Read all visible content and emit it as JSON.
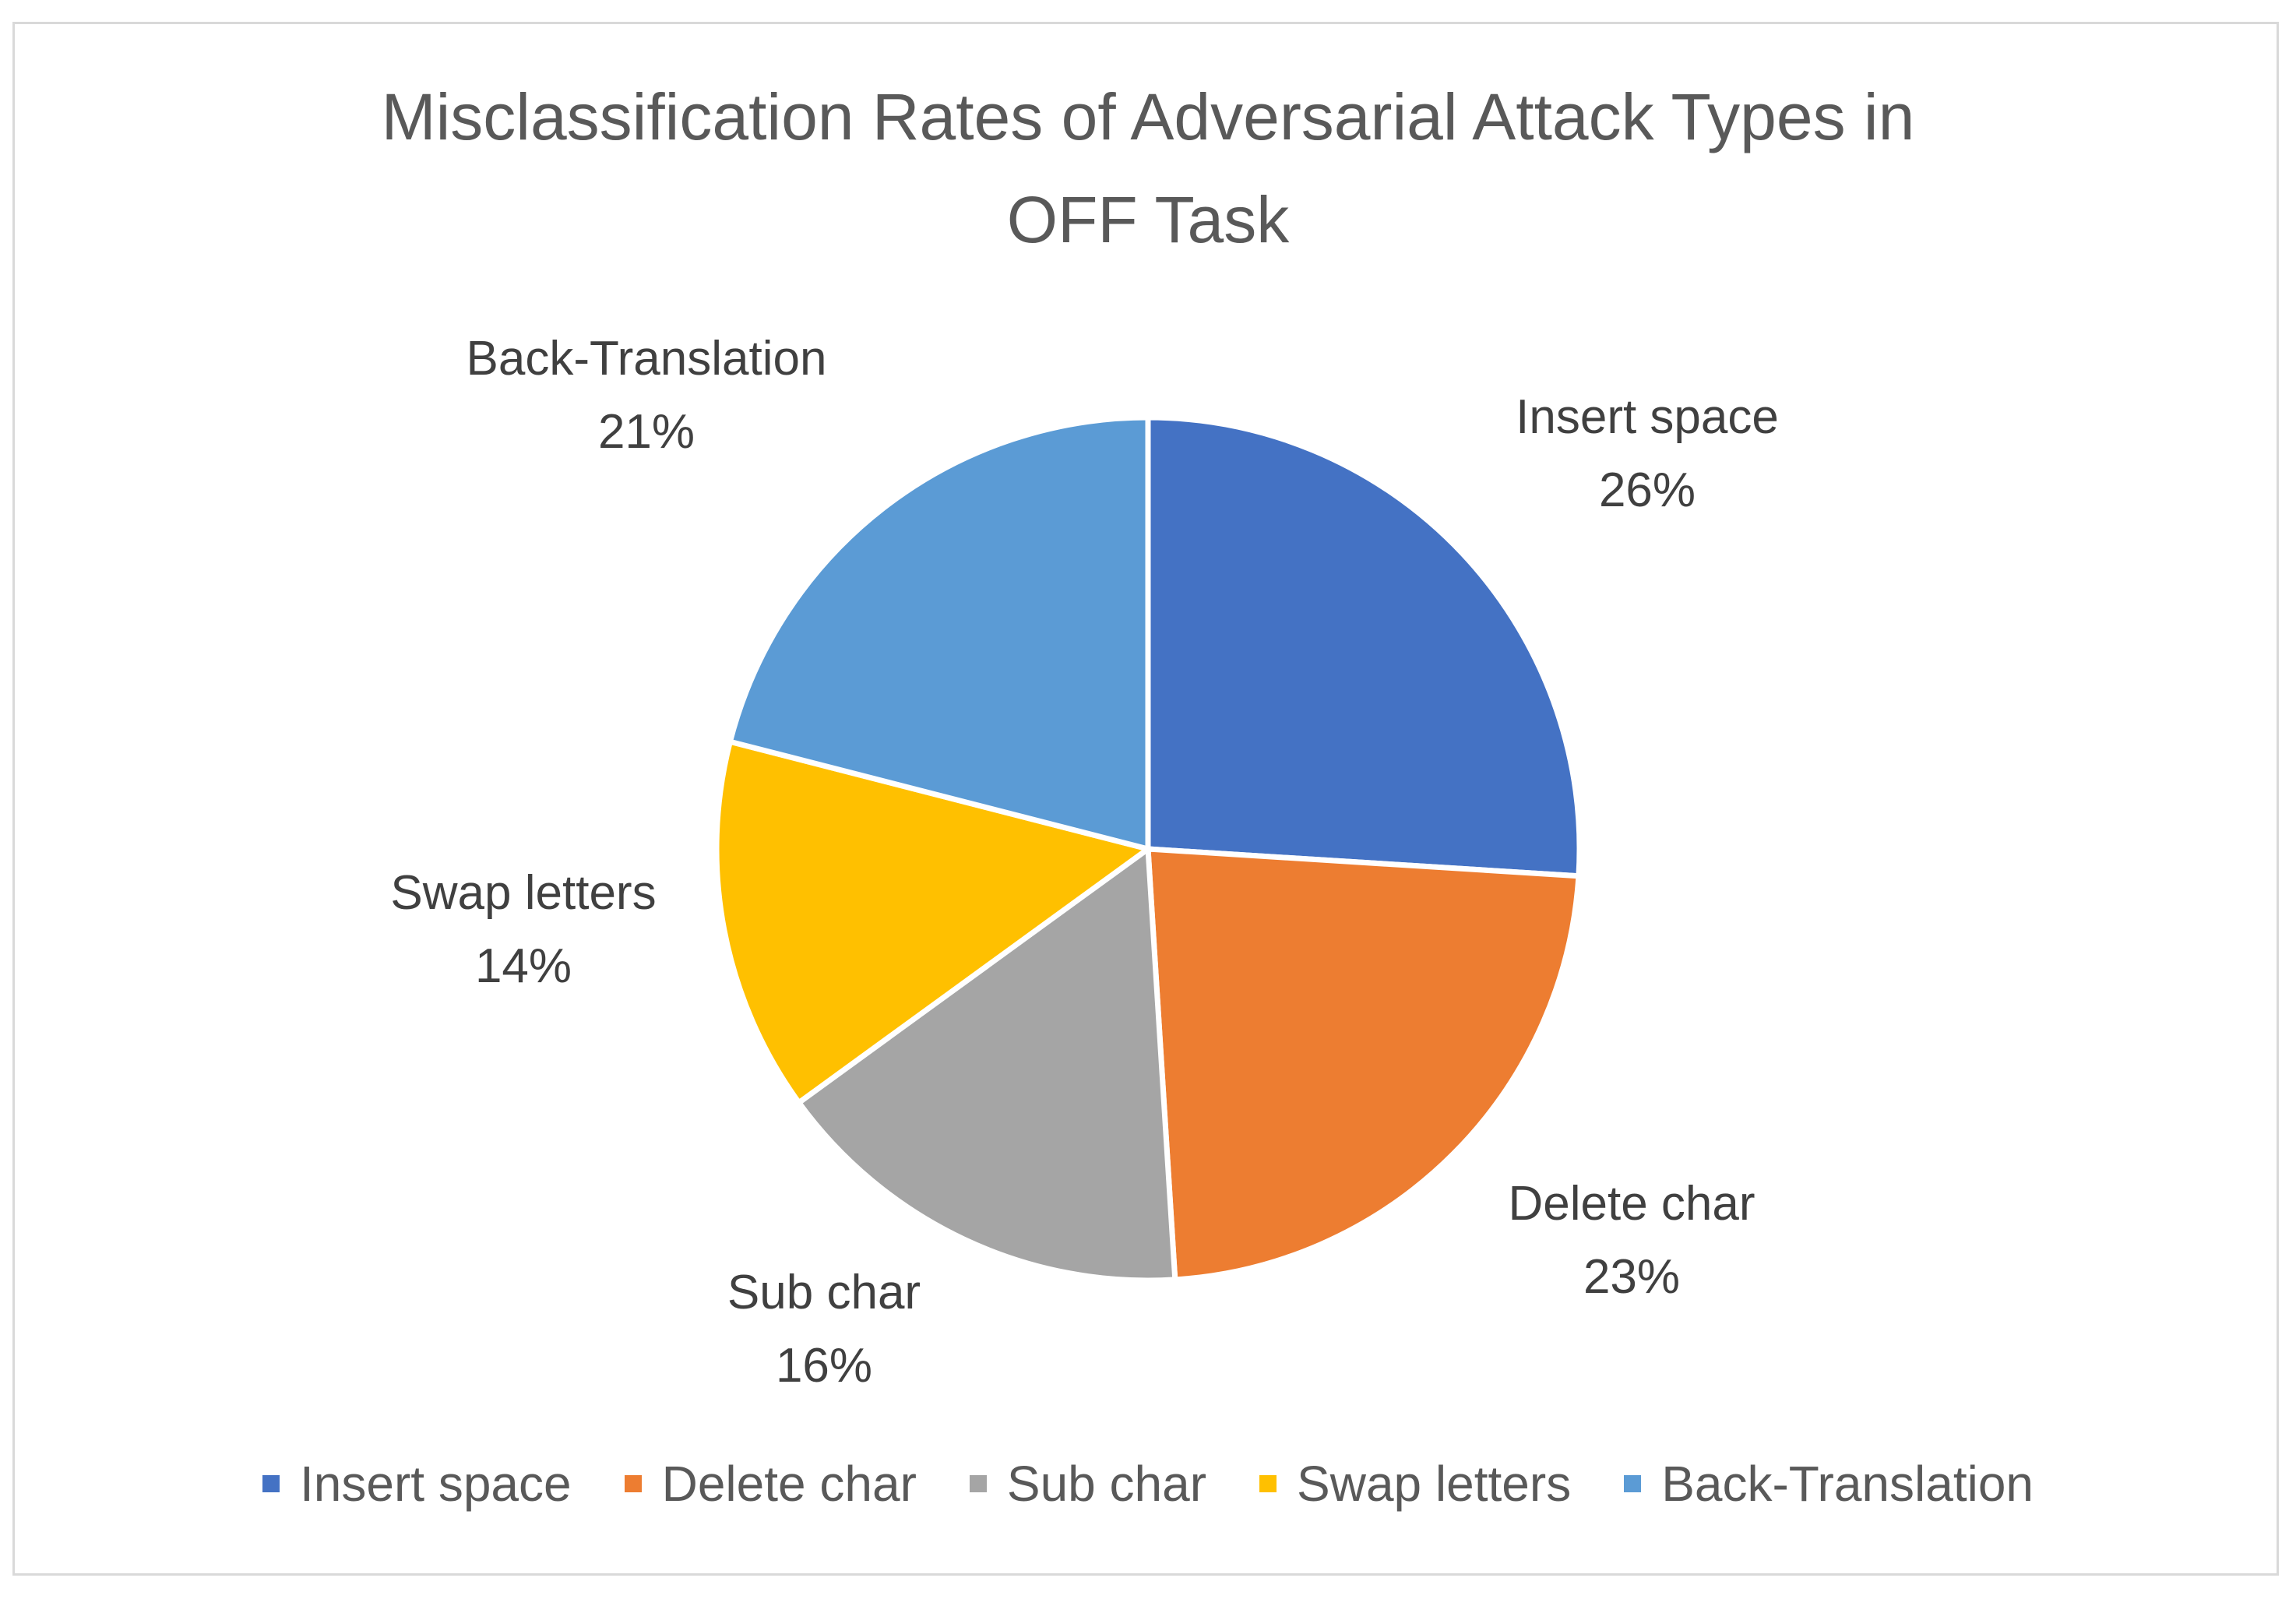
{
  "chart_data": {
    "type": "pie",
    "title": "Misclassification Rates of Adversarial Attack Types in OFF Task",
    "title_lines": [
      "Misclassification Rates of Adversarial Attack Types in",
      "OFF Task"
    ],
    "categories": [
      "Insert space",
      "Delete char",
      "Sub char",
      "Swap letters",
      "Back-Translation"
    ],
    "values": [
      26,
      23,
      16,
      14,
      21
    ],
    "value_labels": [
      "26%",
      "23%",
      "16%",
      "14%",
      "21%"
    ],
    "colors": [
      "#4472C4",
      "#ED7D31",
      "#A5A5A5",
      "#FFC000",
      "#5B9BD5"
    ],
    "legend": {
      "placement": "bottom",
      "entries": [
        "Insert space",
        "Delete char",
        "Sub char",
        "Swap letters",
        "Back-Translation"
      ]
    },
    "start_angle": "12 o'clock",
    "direction": "clockwise"
  }
}
